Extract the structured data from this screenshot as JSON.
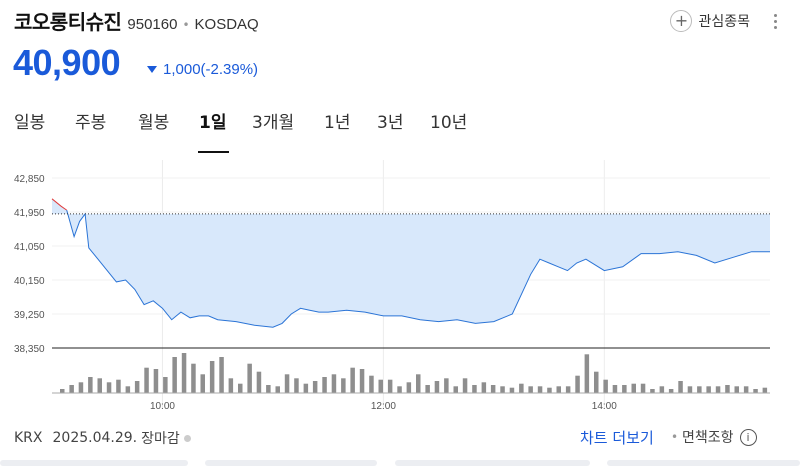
{
  "stock": {
    "name": "코오롱티슈진",
    "code": "950160",
    "market": "KOSDAQ",
    "price": "40,900",
    "change": "1,000(-2.39%)",
    "direction": "down",
    "color_down": "#1a5ad9",
    "color_up": "#e03c3c"
  },
  "actions": {
    "favorite_label": "관심종목"
  },
  "tabs": [
    "일봉",
    "주봉",
    "월봉",
    "1일",
    "3개월",
    "1년",
    "3년",
    "10년"
  ],
  "active_tab": "1일",
  "chart_data": {
    "type": "area",
    "y_ticks": [
      "42,850",
      "41,950",
      "41,050",
      "40,150",
      "39,250",
      "38,350"
    ],
    "y_values": [
      42850,
      41950,
      41050,
      40150,
      39250,
      38350
    ],
    "previous_close": 41900,
    "x_ticks": [
      "10:00",
      "12:00",
      "14:00"
    ],
    "price_series": {
      "x": [
        "09:00",
        "09:05",
        "09:08",
        "09:12",
        "09:15",
        "09:18",
        "09:20",
        "09:25",
        "09:30",
        "09:35",
        "09:40",
        "09:45",
        "09:50",
        "09:55",
        "10:00",
        "10:05",
        "10:10",
        "10:15",
        "10:20",
        "10:25",
        "10:30",
        "10:40",
        "10:50",
        "11:00",
        "11:05",
        "11:10",
        "11:15",
        "11:20",
        "11:25",
        "11:30",
        "11:40",
        "11:50",
        "12:00",
        "12:10",
        "12:20",
        "12:30",
        "12:40",
        "12:50",
        "13:00",
        "13:10",
        "13:20",
        "13:25",
        "13:30",
        "13:35",
        "13:40",
        "13:45",
        "13:50",
        "14:00",
        "14:10",
        "14:20",
        "14:30",
        "14:40",
        "14:50",
        "15:00",
        "15:10",
        "15:20",
        "15:30"
      ],
      "y": [
        42300,
        42100,
        42000,
        41300,
        41700,
        41900,
        41000,
        40700,
        40400,
        40100,
        40150,
        39900,
        39500,
        39600,
        39400,
        39100,
        39300,
        39150,
        39200,
        39200,
        39100,
        39050,
        38950,
        38900,
        39000,
        39250,
        39400,
        39350,
        39300,
        39300,
        39350,
        39300,
        39200,
        39200,
        39100,
        39050,
        39100,
        39000,
        39050,
        39250,
        40300,
        40700,
        40600,
        40500,
        40400,
        40600,
        40700,
        40400,
        40500,
        40850,
        40850,
        40900,
        40800,
        40600,
        40750,
        40900,
        40900
      ]
    },
    "volume_series": [
      3,
      6,
      8,
      12,
      11,
      8,
      10,
      5,
      9,
      19,
      18,
      12,
      27,
      30,
      22,
      14,
      24,
      27,
      11,
      7,
      22,
      16,
      6,
      5,
      14,
      11,
      7,
      9,
      12,
      14,
      11,
      19,
      18,
      13,
      10,
      10,
      5,
      8,
      14,
      6,
      9,
      11,
      5,
      11,
      6,
      8,
      6,
      5,
      4,
      7,
      5,
      5,
      4,
      5,
      5,
      13,
      29,
      16,
      10,
      6,
      6,
      7,
      7,
      3,
      5,
      3,
      9,
      5,
      5,
      5,
      5,
      6,
      5,
      5,
      3,
      4
    ]
  },
  "footer": {
    "exchange": "KRX",
    "date": "2025.04.29.",
    "status": "장마감",
    "more_chart": "차트 더보기",
    "disclaimer": "면책조항"
  }
}
